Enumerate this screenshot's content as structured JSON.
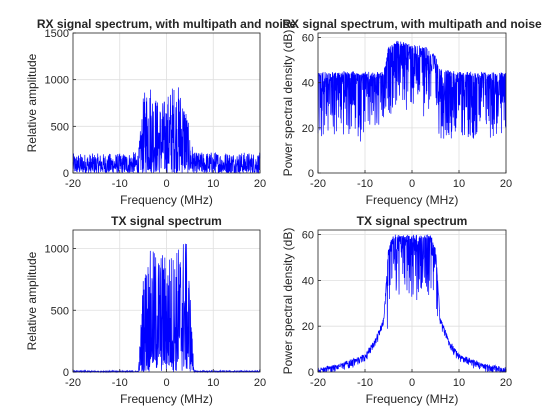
{
  "chart_data": [
    {
      "type": "line",
      "title": "RX signal spectrum, with multipath and noise",
      "xlabel": "Frequency (MHz)",
      "ylabel": "Relative amplitude",
      "xlim": [
        -20,
        20
      ],
      "ylim": [
        0,
        1500
      ],
      "xticks": [
        -20,
        -10,
        0,
        10,
        20
      ],
      "yticks": [
        0,
        500,
        1000,
        1500
      ],
      "grid": true,
      "series": [
        {
          "color": "#0000ff",
          "envelope": {
            "x": [
              -20,
              -10,
              -6,
              -5,
              -4,
              -3,
              -2,
              -1,
              0,
              1,
              2,
              3,
              4,
              5,
              6,
              10,
              20
            ],
            "y": [
              210,
              210,
              230,
              800,
              1050,
              980,
              800,
              780,
              820,
              950,
              980,
              920,
              820,
              400,
              220,
              230,
              220
            ]
          }
        }
      ]
    },
    {
      "type": "line",
      "title": "RX signal spectrum, with multipath and noise",
      "xlabel": "Frequency (MHz)",
      "ylabel": "Power spectral density (dB)",
      "xlim": [
        -20,
        20
      ],
      "ylim": [
        0,
        62
      ],
      "xticks": [
        -20,
        -10,
        0,
        10,
        20
      ],
      "yticks": [
        0,
        20,
        40,
        60
      ],
      "grid": true,
      "series": [
        {
          "color": "#0000ff",
          "envelope": {
            "x": [
              -20,
              -10,
              -6,
              -5,
              -3,
              0,
              3,
              5,
              6,
              10,
              20
            ],
            "y": [
              45,
              45,
              45,
              56,
              59,
              57,
              56,
              52,
              46,
              45,
              45
            ]
          }
        }
      ]
    },
    {
      "type": "line",
      "title": "TX signal spectrum",
      "xlabel": "Frequency (MHz)",
      "ylabel": "Relative amplitude",
      "xlim": [
        -20,
        20
      ],
      "ylim": [
        0,
        1150
      ],
      "xticks": [
        -20,
        -10,
        0,
        10,
        20
      ],
      "yticks": [
        0,
        500,
        1000
      ],
      "grid": true,
      "series": [
        {
          "color": "#0000ff",
          "envelope": {
            "x": [
              -20,
              -6,
              -5.5,
              -5,
              -4,
              -2,
              0,
              2,
              4,
              5,
              5.5,
              6,
              20
            ],
            "y": [
              10,
              10,
              400,
              800,
              980,
              1000,
              980,
              1000,
              1150,
              800,
              300,
              10,
              10
            ]
          }
        }
      ]
    },
    {
      "type": "line",
      "title": "TX signal spectrum",
      "xlabel": "Frequency (MHz)",
      "ylabel": "Power spectral density (dB)",
      "xlim": [
        -20,
        20
      ],
      "ylim": [
        0,
        62
      ],
      "xticks": [
        -20,
        -10,
        0,
        10,
        20
      ],
      "yticks": [
        0,
        20,
        40,
        60
      ],
      "grid": true,
      "series": [
        {
          "color": "#0000ff",
          "envelope": {
            "x": [
              -20,
              -15,
              -10,
              -8,
              -6,
              -5,
              -4,
              0,
              4,
              5,
              6,
              8,
              10,
              15,
              20
            ],
            "y": [
              2,
              4,
              8,
              14,
              24,
              55,
              60,
              60,
              60,
              55,
              24,
              14,
              8,
              4,
              2
            ]
          }
        }
      ]
    }
  ]
}
